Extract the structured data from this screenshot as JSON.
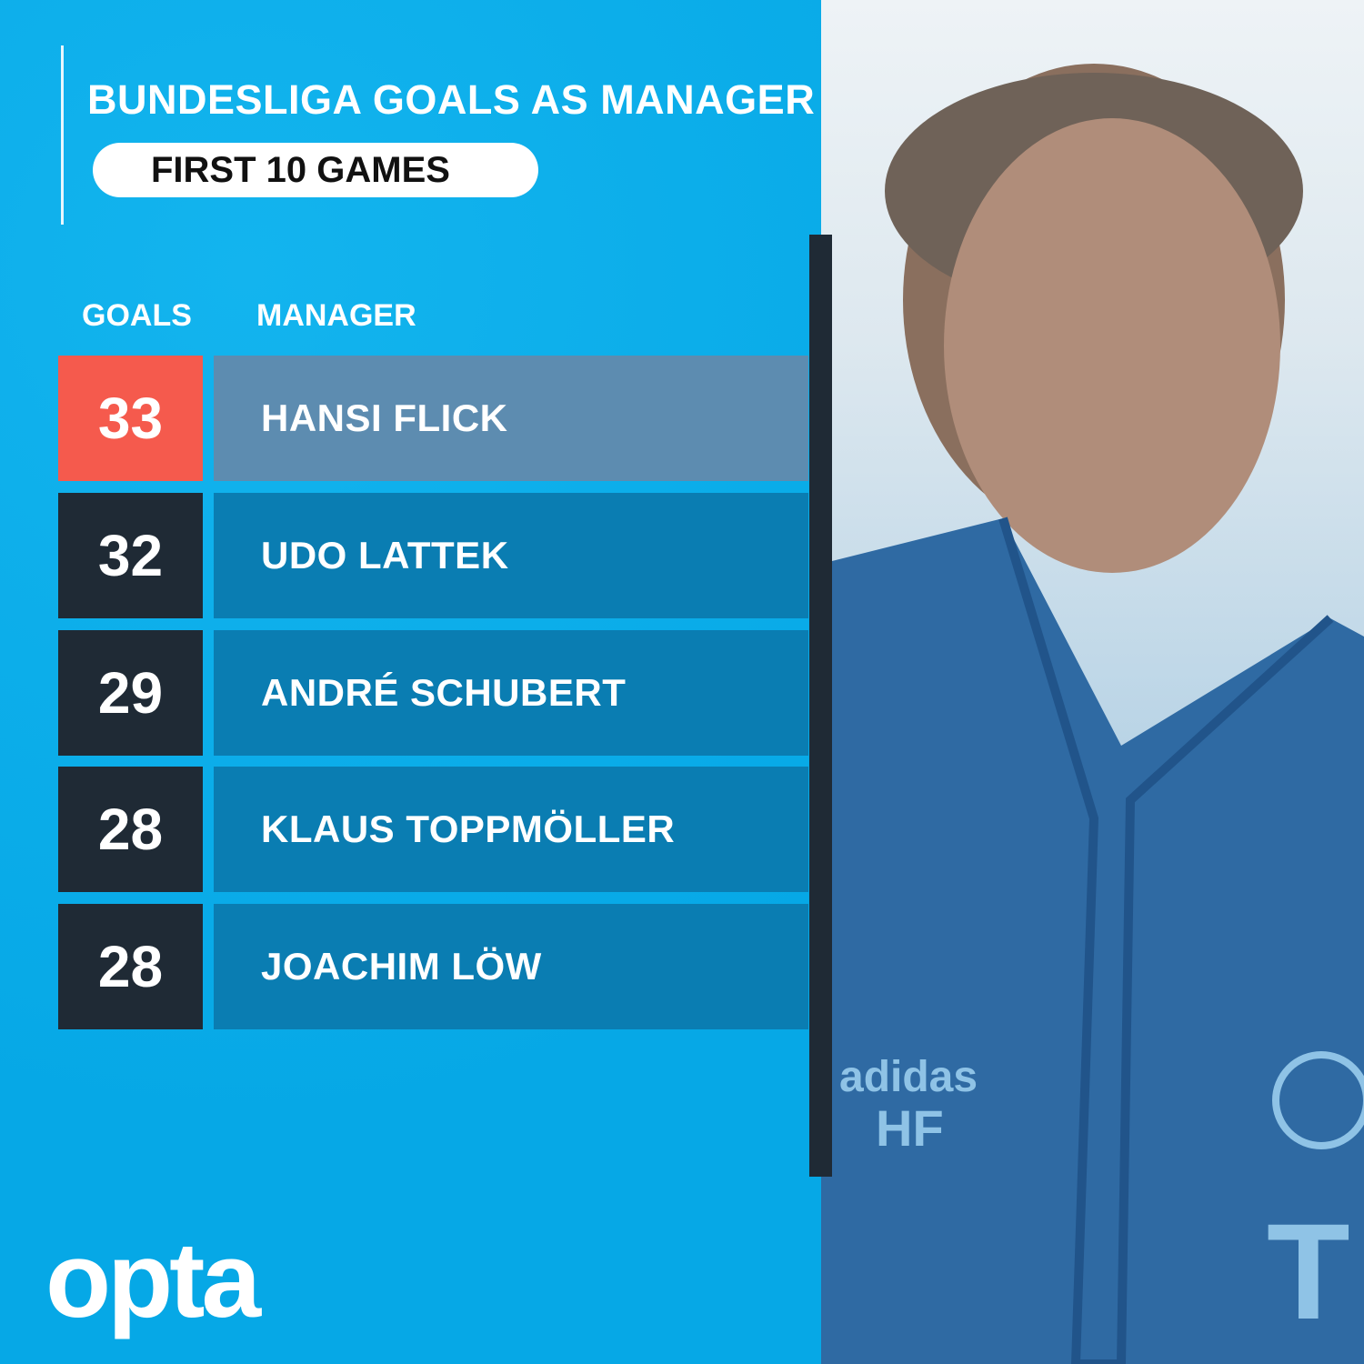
{
  "title": "BUNDESLIGA GOALS AS MANAGER",
  "subtitle": "FIRST 10 GAMES",
  "headers": {
    "goals": "GOALS",
    "manager": "MANAGER"
  },
  "rows": [
    {
      "goals": "33",
      "manager": "HANSI FLICK",
      "highlight": true
    },
    {
      "goals": "32",
      "manager": "UDO LATTEK"
    },
    {
      "goals": "29",
      "manager": "ANDRÉ SCHUBERT"
    },
    {
      "goals": "28",
      "manager": "KLAUS TOPPMÖLLER"
    },
    {
      "goals": "28",
      "manager": "JOACHIM LÖW"
    }
  ],
  "logo": "opta",
  "colors": {
    "background": "#0aaeea",
    "highlight_goal": "#f55a4d",
    "highlight_name": "#5d8cb0",
    "goal_box": "#1f2a35",
    "name_box": "#0a7db2"
  }
}
